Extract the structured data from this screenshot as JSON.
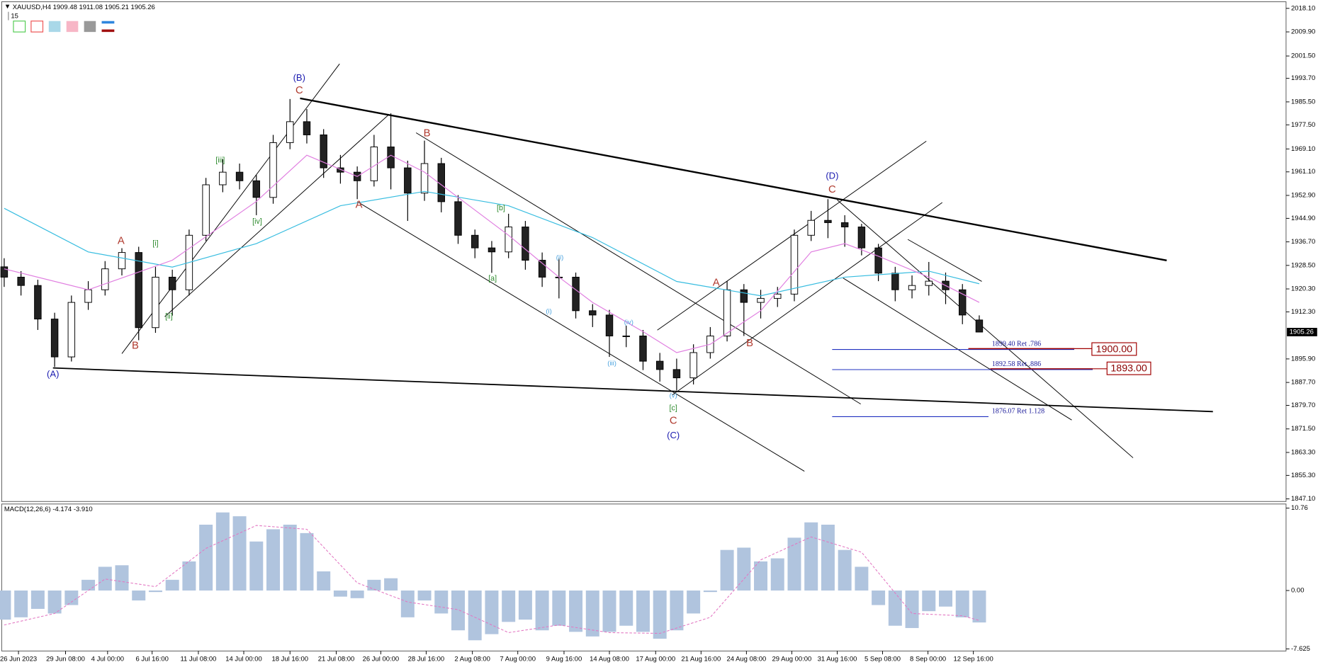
{
  "chart_data": [
    {
      "type": "candlestick",
      "title": "XAUUSD,H4",
      "period_box": "15",
      "open": [
        1928.0,
        1924.4,
        1921.5,
        1909.8,
        1896.6,
        1915.6,
        1920.0,
        1927.3,
        1933.0,
        1906.8,
        1924.4,
        1920.0,
        1939.0,
        1956.6,
        1961.0,
        1958.0,
        1952.2,
        1971.3,
        1978.6,
        1974.0,
        1962.5,
        1961.0,
        1958.0,
        1969.8,
        1962.5,
        1953.7,
        1964.0,
        1950.7,
        1939.0,
        1934.6,
        1933.2,
        1941.9,
        1930.3,
        1924.4,
        1924.4,
        1912.7,
        1911.2,
        1903.9,
        1903.9,
        1895.1,
        1892.2,
        1889.3,
        1898.1,
        1903.9,
        1920.0,
        1915.6,
        1917.0,
        1918.5,
        1939.0,
        1944.2,
        1943.4,
        1941.9,
        1934.6,
        1925.8,
        1920.0,
        1921.5,
        1923.0,
        1920.0,
        1909.48
      ],
      "high": [
        1931.0,
        1926.5,
        1923.5,
        1912.0,
        1918.0,
        1923.0,
        1930.0,
        1934.5,
        1935.0,
        1928.0,
        1927.0,
        1941.0,
        1959.0,
        1965.5,
        1964.0,
        1960.0,
        1974.0,
        1986.5,
        1983.0,
        1976.0,
        1967.0,
        1963.0,
        1974.0,
        1981.5,
        1965.0,
        1972.0,
        1966.0,
        1953.0,
        1941.0,
        1937.0,
        1946.5,
        1944.0,
        1933.0,
        1931.0,
        1926.0,
        1915.0,
        1913.0,
        1907.5,
        1906.0,
        1898.0,
        1896.0,
        1901.0,
        1907.0,
        1923.0,
        1922.0,
        1920.0,
        1921.0,
        1941.0,
        1947.5,
        1951.6,
        1946.0,
        1943.0,
        1936.0,
        1928.0,
        1925.0,
        1929.7,
        1926.0,
        1922.0,
        1911.08
      ],
      "low": [
        1921.0,
        1918.0,
        1906.0,
        1893.1,
        1895.0,
        1913.0,
        1918.0,
        1925.0,
        1902.4,
        1905.0,
        1911.0,
        1918.0,
        1937.0,
        1954.0,
        1955.0,
        1946.0,
        1950.0,
        1969.0,
        1971.0,
        1959.0,
        1957.0,
        1951.6,
        1956.0,
        1955.0,
        1944.0,
        1951.0,
        1947.0,
        1936.0,
        1931.0,
        1925.9,
        1931.0,
        1927.0,
        1921.0,
        1917.0,
        1910.0,
        1907.0,
        1896.6,
        1900.0,
        1892.0,
        1888.0,
        1884.9,
        1887.0,
        1896.0,
        1902.0,
        1903.9,
        1910.0,
        1914.0,
        1916.0,
        1937.0,
        1938.0,
        1935.0,
        1932.0,
        1923.0,
        1916.0,
        1917.0,
        1918.0,
        1915.0,
        1908.0,
        1905.21
      ],
      "close": [
        1924.4,
        1921.5,
        1909.8,
        1896.6,
        1915.6,
        1920.0,
        1927.3,
        1933.0,
        1906.8,
        1924.4,
        1920.0,
        1939.0,
        1956.6,
        1961.0,
        1958.0,
        1952.2,
        1971.3,
        1978.6,
        1974.0,
        1962.5,
        1961.0,
        1958.0,
        1969.8,
        1962.5,
        1953.7,
        1964.0,
        1950.7,
        1939.0,
        1934.6,
        1933.2,
        1941.9,
        1930.3,
        1924.4,
        1924.4,
        1912.7,
        1911.2,
        1903.9,
        1903.9,
        1895.1,
        1892.2,
        1889.3,
        1898.1,
        1903.9,
        1920.0,
        1915.6,
        1917.0,
        1918.5,
        1939.0,
        1944.2,
        1943.4,
        1941.9,
        1934.6,
        1925.8,
        1920.0,
        1921.5,
        1923.0,
        1920.0,
        1911.2,
        1905.26
      ],
      "overlays": [
        {
          "color": "#38bde0",
          "x": [
            0,
            5,
            10,
            15,
            20,
            25,
            30,
            35,
            40,
            45,
            50,
            55,
            58
          ],
          "values": [
            1948.4,
            1933.2,
            1927.9,
            1936.1,
            1949.3,
            1954.3,
            1949.3,
            1938.2,
            1922.9,
            1917.9,
            1924.4,
            1926.5,
            1922.1
          ]
        },
        {
          "color": "#e07ee0",
          "x": [
            0,
            5,
            10,
            15,
            18,
            21,
            23,
            25,
            27,
            30,
            33,
            35,
            38,
            40,
            42,
            45,
            48,
            50,
            52,
            55,
            58
          ],
          "values": [
            1927.3,
            1920.0,
            1930.3,
            1950.8,
            1966.9,
            1959.5,
            1966.9,
            1961.0,
            1952.2,
            1939.0,
            1924.4,
            1915.6,
            1905.4,
            1898.1,
            1901.0,
            1912.7,
            1933.2,
            1936.1,
            1931.7,
            1924.4,
            1915.6
          ]
        }
      ],
      "xlim": [
        -0.25,
        76.25
      ],
      "ylim": [
        1846.2,
        2021.0
      ],
      "xticks": [
        {
          "value": 0.85,
          "label": "26 Jun 2023"
        },
        {
          "value": 3.65,
          "label": "29 Jun 08:00"
        },
        {
          "value": 6.15,
          "label": "4 Jul 00:00"
        },
        {
          "value": 8.8,
          "label": "6 Jul 16:00"
        },
        {
          "value": 11.55,
          "label": "11 Jul 08:00"
        },
        {
          "value": 14.25,
          "label": "14 Jul 00:00"
        },
        {
          "value": 17,
          "label": "18 Jul 16:00"
        },
        {
          "value": 19.75,
          "label": "21 Jul 08:00"
        },
        {
          "value": 22.4,
          "label": "26 Jul 00:00"
        },
        {
          "value": 25.1,
          "label": "28 Jul 16:00"
        },
        {
          "value": 27.85,
          "label": "2 Aug 08:00"
        },
        {
          "value": 30.55,
          "label": "7 Aug 00:00"
        },
        {
          "value": 33.3,
          "label": "9 Aug 16:00"
        },
        {
          "value": 36,
          "label": "14 Aug 08:00"
        },
        {
          "value": 38.75,
          "label": "17 Aug 00:00"
        },
        {
          "value": 41.45,
          "label": "21 Aug 16:00"
        },
        {
          "value": 44.15,
          "label": "24 Aug 08:00"
        },
        {
          "value": 46.85,
          "label": "29 Aug 00:00"
        },
        {
          "value": 49.55,
          "label": "31 Aug 16:00"
        },
        {
          "value": 52.25,
          "label": "5 Sep 08:00"
        },
        {
          "value": 54.95,
          "label": "8 Sep 00:00"
        },
        {
          "value": 57.65,
          "label": "12 Sep 16:00"
        }
      ],
      "yticks": [
        {
          "value": 2018.1,
          "label": "2018.10"
        },
        {
          "value": 2009.9,
          "label": "2009.90"
        },
        {
          "value": 2001.5,
          "label": "2001.50"
        },
        {
          "value": 1993.7,
          "label": "1993.70"
        },
        {
          "value": 1985.5,
          "label": "1985.50"
        },
        {
          "value": 1977.5,
          "label": "1977.50"
        },
        {
          "value": 1969.1,
          "label": "1969.10"
        },
        {
          "value": 1961.1,
          "label": "1961.10"
        },
        {
          "value": 1952.9,
          "label": "1952.90"
        },
        {
          "value": 1944.9,
          "label": "1944.90"
        },
        {
          "value": 1936.7,
          "label": "1936.70"
        },
        {
          "value": 1928.5,
          "label": "1928.50"
        },
        {
          "value": 1920.3,
          "label": "1920.30"
        },
        {
          "value": 1912.3,
          "label": "1912.30"
        },
        {
          "value": 1895.9,
          "label": "1895.90"
        },
        {
          "value": 1887.7,
          "label": "1887.70"
        },
        {
          "value": 1879.7,
          "label": "1879.70"
        },
        {
          "value": 1871.5,
          "label": "1871.50"
        },
        {
          "value": 1863.3,
          "label": "1863.30"
        },
        {
          "value": 1855.3,
          "label": "1855.30"
        },
        {
          "value": 1847.1,
          "label": "1847.10"
        }
      ],
      "wave_labels": [
        "(A)",
        "A",
        "B",
        "[i]",
        "[ii]",
        "[iii]",
        "[iv]",
        "(B)",
        "C",
        "A",
        "B",
        "[a]",
        "[b]",
        "(i)",
        "(ii)",
        "(iii)",
        "(iv)",
        "(v)",
        "[c]",
        "C",
        "(C)",
        "A",
        "B",
        "(D)",
        "C"
      ],
      "fib_labels": [
        "1899.40 Ret .786",
        "1892.58 Ret .886",
        "1876.07 Ret 1.128"
      ],
      "target_labels": [
        "1900.00",
        "1893.00"
      ]
    },
    {
      "type": "macd",
      "title": "MACD(12,26,6)",
      "color": "#b0c4de",
      "values": [
        -3.8,
        -3.5,
        -2.4,
        -3.0,
        -1.9,
        1.4,
        3.1,
        3.3,
        -1.3,
        -0.2,
        1.4,
        3.8,
        8.6,
        10.2,
        9.7,
        6.4,
        8.0,
        8.6,
        7.5,
        2.5,
        -0.8,
        -1.0,
        1.4,
        1.6,
        -3.5,
        -1.3,
        -3.0,
        -5.2,
        -6.5,
        -5.7,
        -4.1,
        -3.8,
        -5.2,
        -4.6,
        -5.4,
        -6.0,
        -5.4,
        -4.6,
        -5.4,
        -6.3,
        -5.2,
        -3.0,
        -0.2,
        5.3,
        5.6,
        3.8,
        4.2,
        6.9,
        8.9,
        8.6,
        5.3,
        3.1,
        -1.9,
        -4.6,
        -4.9,
        -2.7,
        -2.1,
        -3.5,
        -4.174
      ],
      "signal": {
        "color": "#e377c2",
        "x": [
          0,
          3,
          6,
          9,
          12,
          15,
          18,
          21,
          24,
          27,
          30,
          33,
          36,
          39,
          42,
          45,
          48,
          51,
          54,
          57,
          58
        ],
        "values": [
          -4.5,
          -3.0,
          1.5,
          0.5,
          5.5,
          8.5,
          8.0,
          1.0,
          -1.5,
          -2.5,
          -5.5,
          -4.5,
          -5.5,
          -5.6,
          -3.5,
          4.0,
          7.0,
          5.0,
          -3.0,
          -3.3,
          -3.91
        ],
        "value_labels": [
          null,
          null,
          null,
          null,
          null,
          null,
          null,
          null,
          null,
          null,
          null,
          null,
          null,
          null,
          null,
          null,
          null,
          null,
          null,
          null,
          "-3.910"
        ]
      },
      "xlim": [
        -0.25,
        76.25
      ],
      "ylim": [
        -7.9,
        11.3
      ],
      "yticks": [
        10.76,
        {
          "value": 0,
          "label": "0.00"
        },
        -7.625
      ]
    }
  ]
}
